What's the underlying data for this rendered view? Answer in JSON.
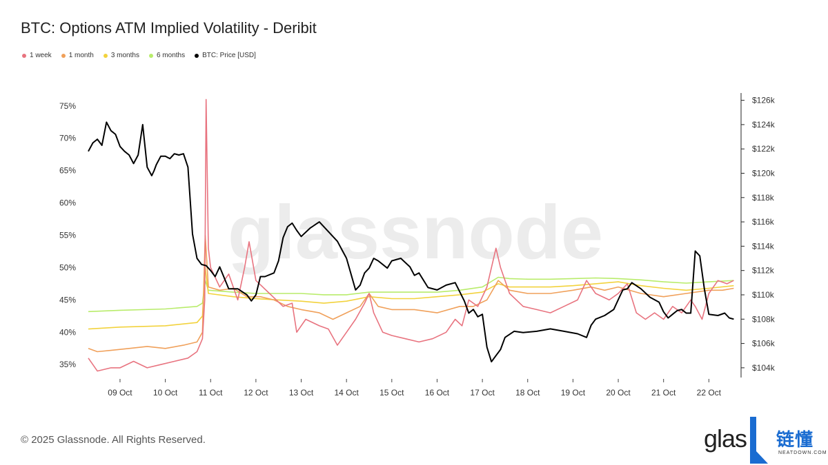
{
  "title": "BTC: Options ATM Implied Volatility - Deribit",
  "footer": {
    "copyright": "© 2025 Glassnode. All Rights Reserved."
  },
  "branding": {
    "watermark": "glassnode",
    "logo_text": "glas",
    "logo_cn": "链懂",
    "logo_sub": "NEATDOWN.COM"
  },
  "legend": [
    {
      "label": "1 week",
      "color": "#e8737f"
    },
    {
      "label": "1 month",
      "color": "#f0a05a"
    },
    {
      "label": "3 months",
      "color": "#f2d23c"
    },
    {
      "label": "6 months",
      "color": "#b8ec6a"
    },
    {
      "label": "BTC: Price [USD]",
      "color": "#000000"
    }
  ],
  "chart_data": {
    "type": "line",
    "title": "BTC: Options ATM Implied Volatility - Deribit",
    "x_ticks": [
      "09 Oct",
      "10 Oct",
      "11 Oct",
      "12 Oct",
      "13 Oct",
      "14 Oct",
      "15 Oct",
      "16 Oct",
      "17 Oct",
      "18 Oct",
      "19 Oct",
      "20 Oct",
      "21 Oct",
      "22 Oct"
    ],
    "x_range": [
      8.3,
      22.65
    ],
    "y_left": {
      "ticks": [
        "35%",
        "40%",
        "45%",
        "50%",
        "55%",
        "60%",
        "65%",
        "70%",
        "75%"
      ],
      "range": [
        33,
        77
      ]
    },
    "y_right": {
      "ticks": [
        "$104k",
        "$106k",
        "$108k",
        "$110k",
        "$112k",
        "$114k",
        "$116k",
        "$118k",
        "$120k",
        "$122k",
        "$124k",
        "$126k"
      ],
      "range": [
        103.2,
        126.6
      ]
    },
    "grid": false,
    "legend_position": "top-left",
    "series": [
      {
        "name": "1 week",
        "axis": "left",
        "color": "#e8737f",
        "x": [
          8.3,
          8.5,
          8.8,
          9.0,
          9.3,
          9.6,
          9.9,
          10.2,
          10.5,
          10.7,
          10.82,
          10.87,
          10.9,
          10.95,
          11.0,
          11.2,
          11.4,
          11.6,
          11.75,
          11.85,
          12.0,
          12.3,
          12.6,
          12.8,
          12.9,
          13.1,
          13.4,
          13.6,
          13.8,
          14.0,
          14.2,
          14.4,
          14.5,
          14.6,
          14.8,
          15.0,
          15.3,
          15.6,
          15.9,
          16.2,
          16.4,
          16.55,
          16.7,
          16.9,
          17.1,
          17.3,
          17.4,
          17.6,
          17.9,
          18.2,
          18.5,
          18.8,
          19.1,
          19.3,
          19.5,
          19.8,
          20.0,
          20.2,
          20.4,
          20.6,
          20.8,
          21.0,
          21.2,
          21.4,
          21.5,
          21.6,
          21.7,
          21.85,
          22.0,
          22.2,
          22.4,
          22.55
        ],
        "y": [
          36,
          34,
          34.5,
          34.5,
          35.5,
          34.5,
          35,
          35.5,
          36,
          37,
          39,
          45,
          76,
          53,
          50,
          47,
          49,
          45,
          50,
          54,
          48,
          46,
          44,
          44.5,
          40,
          42,
          41,
          40.5,
          38,
          40,
          42,
          44.5,
          46,
          43,
          40,
          39.5,
          39,
          38.5,
          39,
          40,
          42,
          41,
          45,
          44,
          47,
          53,
          50,
          46,
          44,
          43.5,
          43,
          44,
          45,
          48,
          46,
          45,
          46,
          47.5,
          43,
          42,
          43,
          42,
          44,
          43,
          44,
          45,
          44,
          42,
          46,
          48,
          47.5,
          48
        ]
      },
      {
        "name": "1 month",
        "axis": "left",
        "color": "#f0a05a",
        "x": [
          8.3,
          8.5,
          8.8,
          9.2,
          9.6,
          10.0,
          10.4,
          10.7,
          10.82,
          10.88,
          10.95,
          11.2,
          11.5,
          11.8,
          12.1,
          12.4,
          12.7,
          13.0,
          13.4,
          13.7,
          14.0,
          14.3,
          14.5,
          14.7,
          15.0,
          15.5,
          16.0,
          16.5,
          16.8,
          17.1,
          17.35,
          17.6,
          18.0,
          18.5,
          19.0,
          19.4,
          19.7,
          20.0,
          20.5,
          21.0,
          21.5,
          22.0,
          22.3,
          22.55
        ],
        "y": [
          37.5,
          37,
          37.2,
          37.5,
          37.8,
          37.5,
          38,
          38.5,
          40,
          55,
          47,
          46.5,
          46.8,
          45.5,
          45.5,
          45,
          44,
          43.5,
          43,
          42,
          43,
          44,
          46,
          44,
          43.5,
          43.5,
          43,
          44,
          44,
          45,
          48,
          46.5,
          46,
          46,
          46.5,
          47,
          46.5,
          47,
          46,
          45.5,
          46,
          46.5,
          46.5,
          46.8
        ]
      },
      {
        "name": "3 months",
        "axis": "left",
        "color": "#f2d23c",
        "x": [
          8.3,
          9.0,
          10.0,
          10.7,
          10.82,
          10.88,
          10.95,
          11.5,
          12.0,
          12.5,
          13.0,
          13.5,
          14.0,
          14.5,
          15.0,
          15.5,
          16.0,
          16.5,
          17.0,
          17.35,
          17.6,
          18.0,
          18.5,
          19.0,
          19.5,
          20.0,
          20.5,
          21.0,
          21.5,
          22.0,
          22.55
        ],
        "y": [
          40.5,
          40.8,
          41,
          41.5,
          42.5,
          50,
          46,
          45.5,
          45.2,
          45,
          44.8,
          44.5,
          44.8,
          45.5,
          45.2,
          45.2,
          45.5,
          45.8,
          46.2,
          47.5,
          47,
          47,
          47,
          47.2,
          47.5,
          47.8,
          47.2,
          46.8,
          46.5,
          46.8,
          47.2
        ]
      },
      {
        "name": "6 months",
        "axis": "left",
        "color": "#b8ec6a",
        "x": [
          8.3,
          9.0,
          10.0,
          10.7,
          10.82,
          10.88,
          10.95,
          11.5,
          12.0,
          12.5,
          13.0,
          13.5,
          14.0,
          14.5,
          15.0,
          15.5,
          16.0,
          16.5,
          17.0,
          17.35,
          17.6,
          18.0,
          18.5,
          19.0,
          19.5,
          20.0,
          20.5,
          21.0,
          21.5,
          22.0,
          22.55
        ],
        "y": [
          43.2,
          43.4,
          43.6,
          44,
          44.5,
          48,
          46.5,
          46.2,
          46,
          46,
          46,
          45.8,
          45.8,
          46.2,
          46.2,
          46.2,
          46.2,
          46.5,
          47,
          48.5,
          48.3,
          48.2,
          48.2,
          48.3,
          48.4,
          48.3,
          48.1,
          47.8,
          47.6,
          47.8,
          48
        ]
      },
      {
        "name": "BTC: Price [USD]",
        "axis": "right",
        "color": "#000000",
        "x": [
          8.3,
          8.4,
          8.5,
          8.6,
          8.7,
          8.8,
          8.9,
          9.0,
          9.1,
          9.2,
          9.3,
          9.4,
          9.5,
          9.6,
          9.7,
          9.75,
          9.8,
          9.9,
          10.0,
          10.1,
          10.2,
          10.3,
          10.4,
          10.5,
          10.6,
          10.7,
          10.8,
          10.9,
          11.0,
          11.1,
          11.2,
          11.4,
          11.6,
          11.8,
          11.9,
          12.0,
          12.1,
          12.2,
          12.4,
          12.5,
          12.6,
          12.7,
          12.8,
          12.9,
          13.0,
          13.2,
          13.4,
          13.6,
          13.8,
          14.0,
          14.2,
          14.3,
          14.4,
          14.5,
          14.6,
          14.7,
          14.9,
          15.0,
          15.2,
          15.4,
          15.5,
          15.6,
          15.8,
          16.0,
          16.2,
          16.4,
          16.6,
          16.7,
          16.8,
          16.9,
          17.0,
          17.1,
          17.2,
          17.3,
          17.4,
          17.5,
          17.7,
          17.9,
          18.2,
          18.5,
          18.8,
          19.1,
          19.3,
          19.4,
          19.5,
          19.7,
          19.9,
          20.0,
          20.1,
          20.2,
          20.3,
          20.5,
          20.7,
          20.9,
          21.0,
          21.1,
          21.2,
          21.3,
          21.4,
          21.5,
          21.6,
          21.7,
          21.8,
          21.9,
          22.0,
          22.2,
          22.35,
          22.45,
          22.55
        ],
        "y": [
          121.8,
          122.5,
          122.8,
          122.3,
          124.2,
          123.5,
          123.2,
          122.2,
          121.8,
          121.5,
          120.8,
          121.5,
          124.0,
          120.5,
          119.8,
          120.2,
          120.7,
          121.4,
          121.4,
          121.2,
          121.6,
          121.5,
          121.6,
          120.5,
          115.0,
          113.0,
          112.5,
          112.4,
          112.0,
          111.5,
          112.3,
          110.5,
          110.5,
          110.0,
          109.5,
          110.0,
          111.5,
          111.5,
          111.8,
          112.8,
          114.7,
          115.6,
          115.9,
          115.3,
          114.8,
          115.5,
          116.0,
          115.2,
          114.4,
          113.0,
          110.4,
          110.8,
          111.8,
          112.2,
          113.0,
          112.8,
          112.2,
          112.8,
          113.0,
          112.3,
          111.6,
          111.8,
          110.6,
          110.4,
          110.8,
          111.0,
          109.5,
          108.5,
          108.8,
          108.2,
          108.4,
          105.7,
          104.5,
          105.0,
          105.5,
          106.5,
          107.0,
          106.9,
          107.0,
          107.2,
          107.0,
          106.8,
          106.5,
          107.5,
          108.0,
          108.3,
          108.8,
          109.6,
          110.4,
          110.5,
          111.0,
          110.5,
          109.8,
          109.4,
          108.6,
          108.1,
          108.4,
          108.7,
          108.8,
          108.5,
          108.5,
          113.6,
          113.2,
          110.5,
          108.4,
          108.3,
          108.5,
          108.1,
          108.0
        ]
      }
    ]
  }
}
